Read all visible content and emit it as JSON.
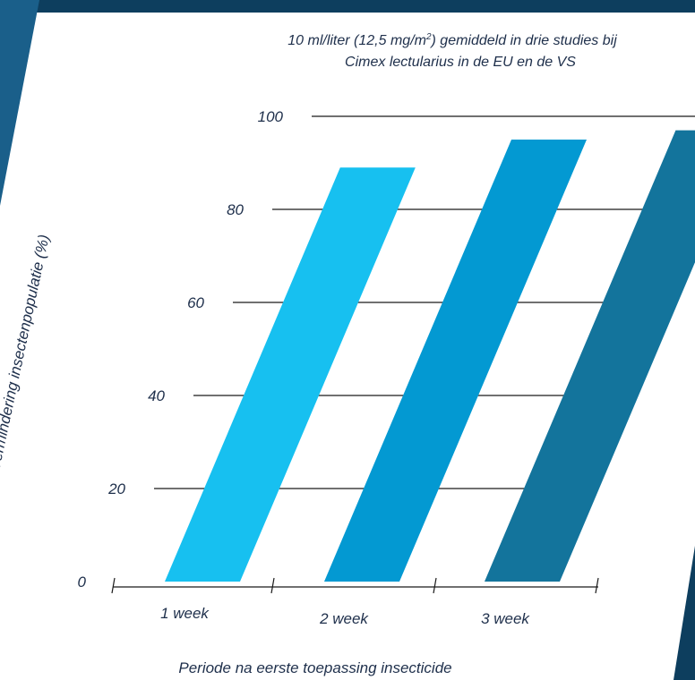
{
  "colors": {
    "frame_dark": "#0d3e5e",
    "frame_mid": "#1a5f8a",
    "gridline": "#1a1a1a",
    "text": "#1e2f4b"
  },
  "chart_data": {
    "type": "bar",
    "title_main": "10 ml/liter (12,5 mg/m",
    "title_sup": "2",
    "title_end": ") gemiddeld in drie studies bij",
    "subtitle": "Cimex lectularius in de EU en de VS",
    "xlabel": "Periode na eerste toepassing insecticide",
    "ylabel": "Vermindering insectenpopulatie (%)",
    "categories": [
      "1 week",
      "2 week",
      "3 week"
    ],
    "values": [
      89,
      95,
      97
    ],
    "bar_colors": [
      "#17c0f0",
      "#0399d2",
      "#13749c"
    ],
    "yticks": [
      "0",
      "20",
      "40",
      "60",
      "80",
      "100"
    ],
    "ylim": [
      0,
      100
    ],
    "grid": true
  }
}
